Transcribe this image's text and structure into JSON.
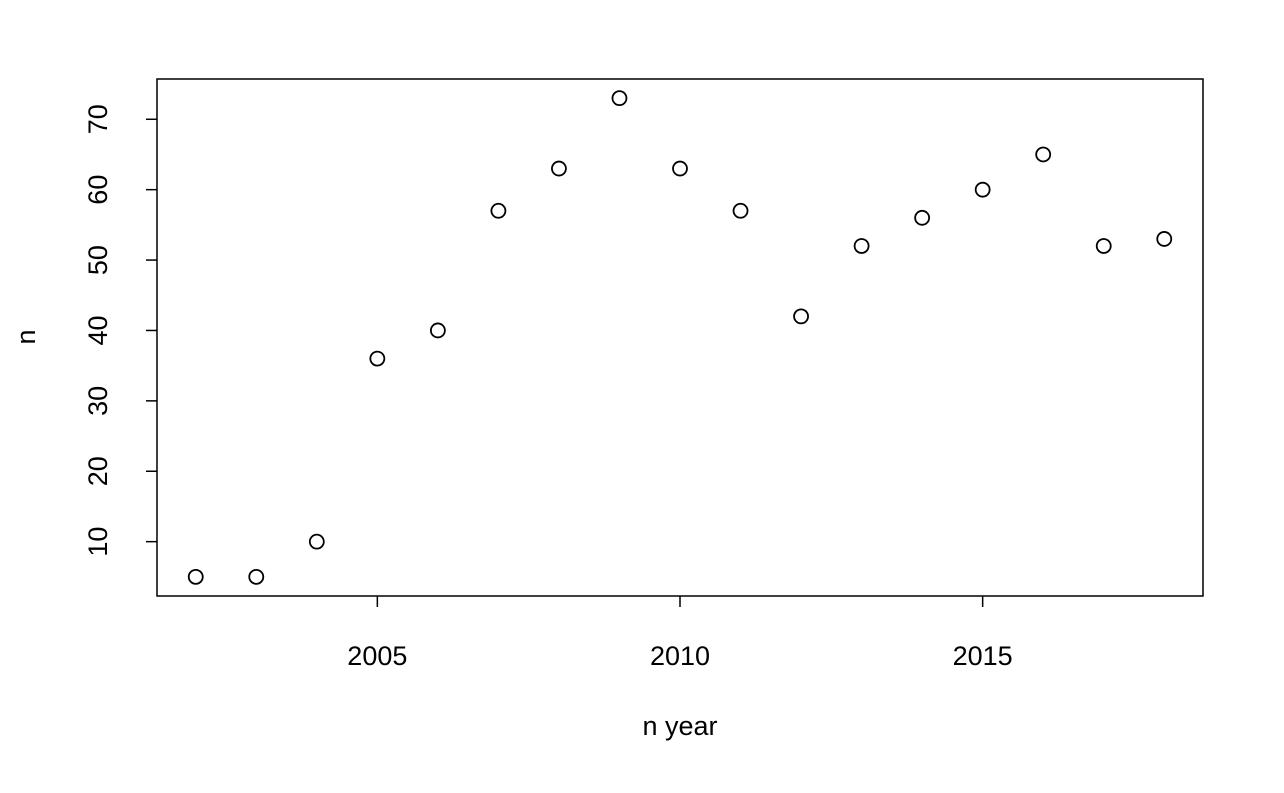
{
  "chart_data": {
    "type": "scatter",
    "xlabel": "n year",
    "ylabel": "n",
    "x": [
      2002,
      2003,
      2004,
      2005,
      2006,
      2007,
      2008,
      2009,
      2010,
      2011,
      2012,
      2013,
      2014,
      2015,
      2016,
      2017,
      2018
    ],
    "values": [
      5,
      5,
      10,
      36,
      40,
      57,
      63,
      73,
      63,
      57,
      42,
      52,
      56,
      60,
      65,
      52,
      53
    ],
    "color": "#000000",
    "xlim": [
      2001.36,
      2018.64
    ],
    "ylim": [
      2.28,
      75.72
    ],
    "xticks": [
      2005,
      2010,
      2015
    ],
    "yticks": [
      10,
      20,
      30,
      40,
      50,
      60,
      70
    ],
    "grid": false
  }
}
